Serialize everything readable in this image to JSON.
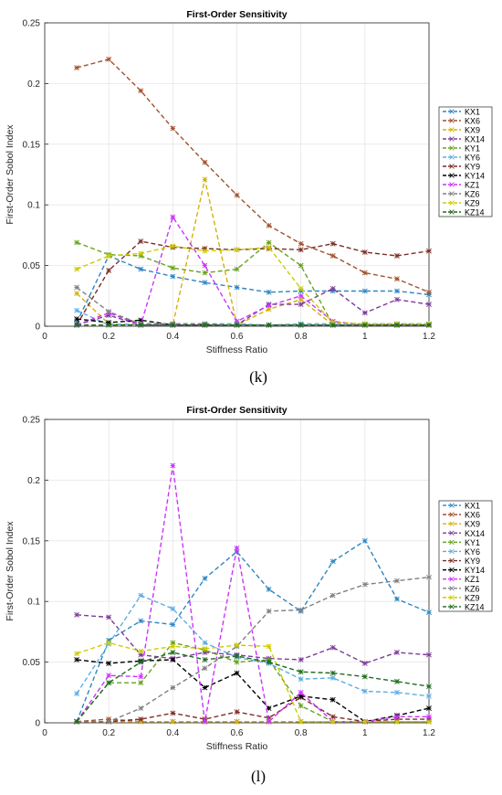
{
  "chart_data": [
    {
      "panel_label": "(k)",
      "type": "line",
      "title": "First-Order Sensitivity",
      "xlabel": "Stiffness Ratio",
      "ylabel": "First-Order Sobol Index",
      "xlim": [
        0,
        1.2
      ],
      "ylim": [
        0,
        0.25
      ],
      "xticks": [
        0,
        0.2,
        0.4,
        0.6,
        0.8,
        1,
        1.2
      ],
      "xtick_labels": [
        "0",
        "0.2",
        "0.4",
        "0.6",
        "0.8",
        "1",
        "1.2"
      ],
      "yticks": [
        0,
        0.05,
        0.1,
        0.15,
        0.2,
        0.25
      ],
      "ytick_labels": [
        "0",
        "0.05",
        "0.1",
        "0.15",
        "0.2",
        "0.25"
      ],
      "grid": true,
      "legend_position": "right",
      "x": [
        0.1,
        0.2,
        0.3,
        0.4,
        0.5,
        0.6,
        0.7,
        0.8,
        0.9,
        1.0,
        1.1,
        1.2
      ],
      "series": [
        {
          "name": "KX1",
          "color": "#2e86c1",
          "values": [
            0.003,
            0.058,
            0.047,
            0.041,
            0.036,
            0.032,
            0.028,
            0.029,
            0.029,
            0.029,
            0.029,
            0.026
          ]
        },
        {
          "name": "KX6",
          "color": "#a0522d",
          "values": [
            0.213,
            0.22,
            0.194,
            0.163,
            0.135,
            0.108,
            0.083,
            0.068,
            0.058,
            0.044,
            0.039,
            0.028
          ]
        },
        {
          "name": "KX9",
          "color": "#d4b106",
          "values": [
            0.027,
            0.002,
            0.001,
            0.001,
            0.121,
            0.001,
            0.014,
            0.022,
            0.001,
            0.001,
            0.001,
            0.001
          ]
        },
        {
          "name": "KX14",
          "color": "#7d3c98",
          "values": [
            0.001,
            0.009,
            0.001,
            0.001,
            0.001,
            0.001,
            0.018,
            0.018,
            0.031,
            0.011,
            0.022,
            0.018
          ]
        },
        {
          "name": "KY1",
          "color": "#6aa121",
          "values": [
            0.069,
            0.059,
            0.058,
            0.048,
            0.044,
            0.047,
            0.069,
            0.05,
            0.001,
            0.001,
            0.001,
            0.001
          ]
        },
        {
          "name": "KY6",
          "color": "#5dade2",
          "values": [
            0.013,
            0.001,
            0.002,
            0.002,
            0.002,
            0.002,
            0.001,
            0.002,
            0.002,
            0.002,
            0.002,
            0.002
          ]
        },
        {
          "name": "KY9",
          "color": "#7b2d26",
          "values": [
            0.001,
            0.046,
            0.07,
            0.065,
            0.064,
            0.063,
            0.064,
            0.063,
            0.068,
            0.061,
            0.058,
            0.062
          ]
        },
        {
          "name": "KY14",
          "color": "#000000",
          "values": [
            0.006,
            0.003,
            0.005,
            0.001,
            0.001,
            0.001,
            0.001,
            0.001,
            0.001,
            0.001,
            0.001,
            0.001
          ]
        },
        {
          "name": "KZ1",
          "color": "#cc33ff",
          "values": [
            0.001,
            0.011,
            0.001,
            0.09,
            0.05,
            0.004,
            0.017,
            0.025,
            0.004,
            0.001,
            0.002,
            0.001
          ]
        },
        {
          "name": "KZ6",
          "color": "#808080",
          "values": [
            0.032,
            0.012,
            0.002,
            0.002,
            0.002,
            0.001,
            0.001,
            0.001,
            0.001,
            0.001,
            0.001,
            0.001
          ]
        },
        {
          "name": "KZ9",
          "color": "#cccc00",
          "values": [
            0.047,
            0.058,
            0.06,
            0.066,
            0.062,
            0.063,
            0.065,
            0.031,
            0.003,
            0.002,
            0.002,
            0.002
          ]
        },
        {
          "name": "KZ14",
          "color": "#1e6b1e",
          "values": [
            0.001,
            0.001,
            0.001,
            0.001,
            0.001,
            0.001,
            0.001,
            0.001,
            0.001,
            0.001,
            0.001,
            0.001
          ]
        }
      ]
    },
    {
      "panel_label": "(l)",
      "type": "line",
      "title": "First-Order Sensitivity",
      "xlabel": "Stiffness Ratio",
      "ylabel": "First-Order Sobol Index",
      "xlim": [
        0,
        1.2
      ],
      "ylim": [
        0,
        0.25
      ],
      "xticks": [
        0,
        0.2,
        0.4,
        0.6,
        0.8,
        1,
        1.2
      ],
      "xtick_labels": [
        "0",
        "0.2",
        "0.4",
        "0.6",
        "0.8",
        "1",
        "1.2"
      ],
      "yticks": [
        0,
        0.05,
        0.1,
        0.15,
        0.2,
        0.25
      ],
      "ytick_labels": [
        "0",
        "0.05",
        "0.1",
        "0.15",
        "0.2",
        "0.25"
      ],
      "grid": true,
      "legend_position": "right",
      "x": [
        0.1,
        0.2,
        0.3,
        0.4,
        0.5,
        0.6,
        0.7,
        0.8,
        0.9,
        1.0,
        1.1,
        1.2
      ],
      "series": [
        {
          "name": "KX1",
          "color": "#2e86c1",
          "values": [
            0.001,
            0.068,
            0.084,
            0.081,
            0.119,
            0.141,
            0.11,
            0.092,
            0.133,
            0.15,
            0.102,
            0.091
          ]
        },
        {
          "name": "KX6",
          "color": "#a0522d",
          "values": [
            0.001,
            0.003,
            0.001,
            0.001,
            0.001,
            0.001,
            0.001,
            0.001,
            0.001,
            0.001,
            0.001,
            0.001
          ]
        },
        {
          "name": "KX9",
          "color": "#d4b106",
          "values": [
            0.001,
            0.001,
            0.001,
            0.001,
            0.001,
            0.001,
            0.001,
            0.001,
            0.001,
            0.001,
            0.001,
            0.001
          ]
        },
        {
          "name": "KX14",
          "color": "#7d3c98",
          "values": [
            0.089,
            0.087,
            0.056,
            0.053,
            0.058,
            0.056,
            0.053,
            0.052,
            0.062,
            0.049,
            0.058,
            0.056
          ]
        },
        {
          "name": "KY1",
          "color": "#6aa121",
          "values": [
            0.001,
            0.033,
            0.033,
            0.066,
            0.06,
            0.05,
            0.052,
            0.014,
            0.001,
            0.001,
            0.001,
            0.001
          ]
        },
        {
          "name": "KY6",
          "color": "#5dade2",
          "values": [
            0.024,
            0.065,
            0.105,
            0.094,
            0.066,
            0.054,
            0.049,
            0.036,
            0.037,
            0.026,
            0.025,
            0.022
          ]
        },
        {
          "name": "KY9",
          "color": "#7b2d26",
          "values": [
            0.001,
            0.001,
            0.003,
            0.008,
            0.003,
            0.009,
            0.004,
            0.021,
            0.005,
            0.001,
            0.003,
            0.003
          ]
        },
        {
          "name": "KY14",
          "color": "#000000",
          "values": [
            0.052,
            0.049,
            0.051,
            0.052,
            0.029,
            0.041,
            0.012,
            0.022,
            0.019,
            0.001,
            0.006,
            0.012
          ]
        },
        {
          "name": "KZ1",
          "color": "#cc33ff",
          "values": [
            0.001,
            0.039,
            0.038,
            0.212,
            0.001,
            0.144,
            0.001,
            0.025,
            0.001,
            0.001,
            0.005,
            0.005
          ]
        },
        {
          "name": "KZ6",
          "color": "#808080",
          "values": [
            0.001,
            0.001,
            0.012,
            0.029,
            0.045,
            0.063,
            0.092,
            0.093,
            0.105,
            0.114,
            0.117,
            0.12
          ]
        },
        {
          "name": "KZ9",
          "color": "#cccc00",
          "values": [
            0.057,
            0.066,
            0.059,
            0.063,
            0.061,
            0.064,
            0.063,
            0.001,
            0.001,
            0.001,
            0.001,
            0.001
          ]
        },
        {
          "name": "KZ14",
          "color": "#1e6b1e",
          "values": [
            0.001,
            0.033,
            0.05,
            0.058,
            0.052,
            0.055,
            0.05,
            0.042,
            0.041,
            0.038,
            0.034,
            0.03
          ]
        }
      ]
    }
  ]
}
